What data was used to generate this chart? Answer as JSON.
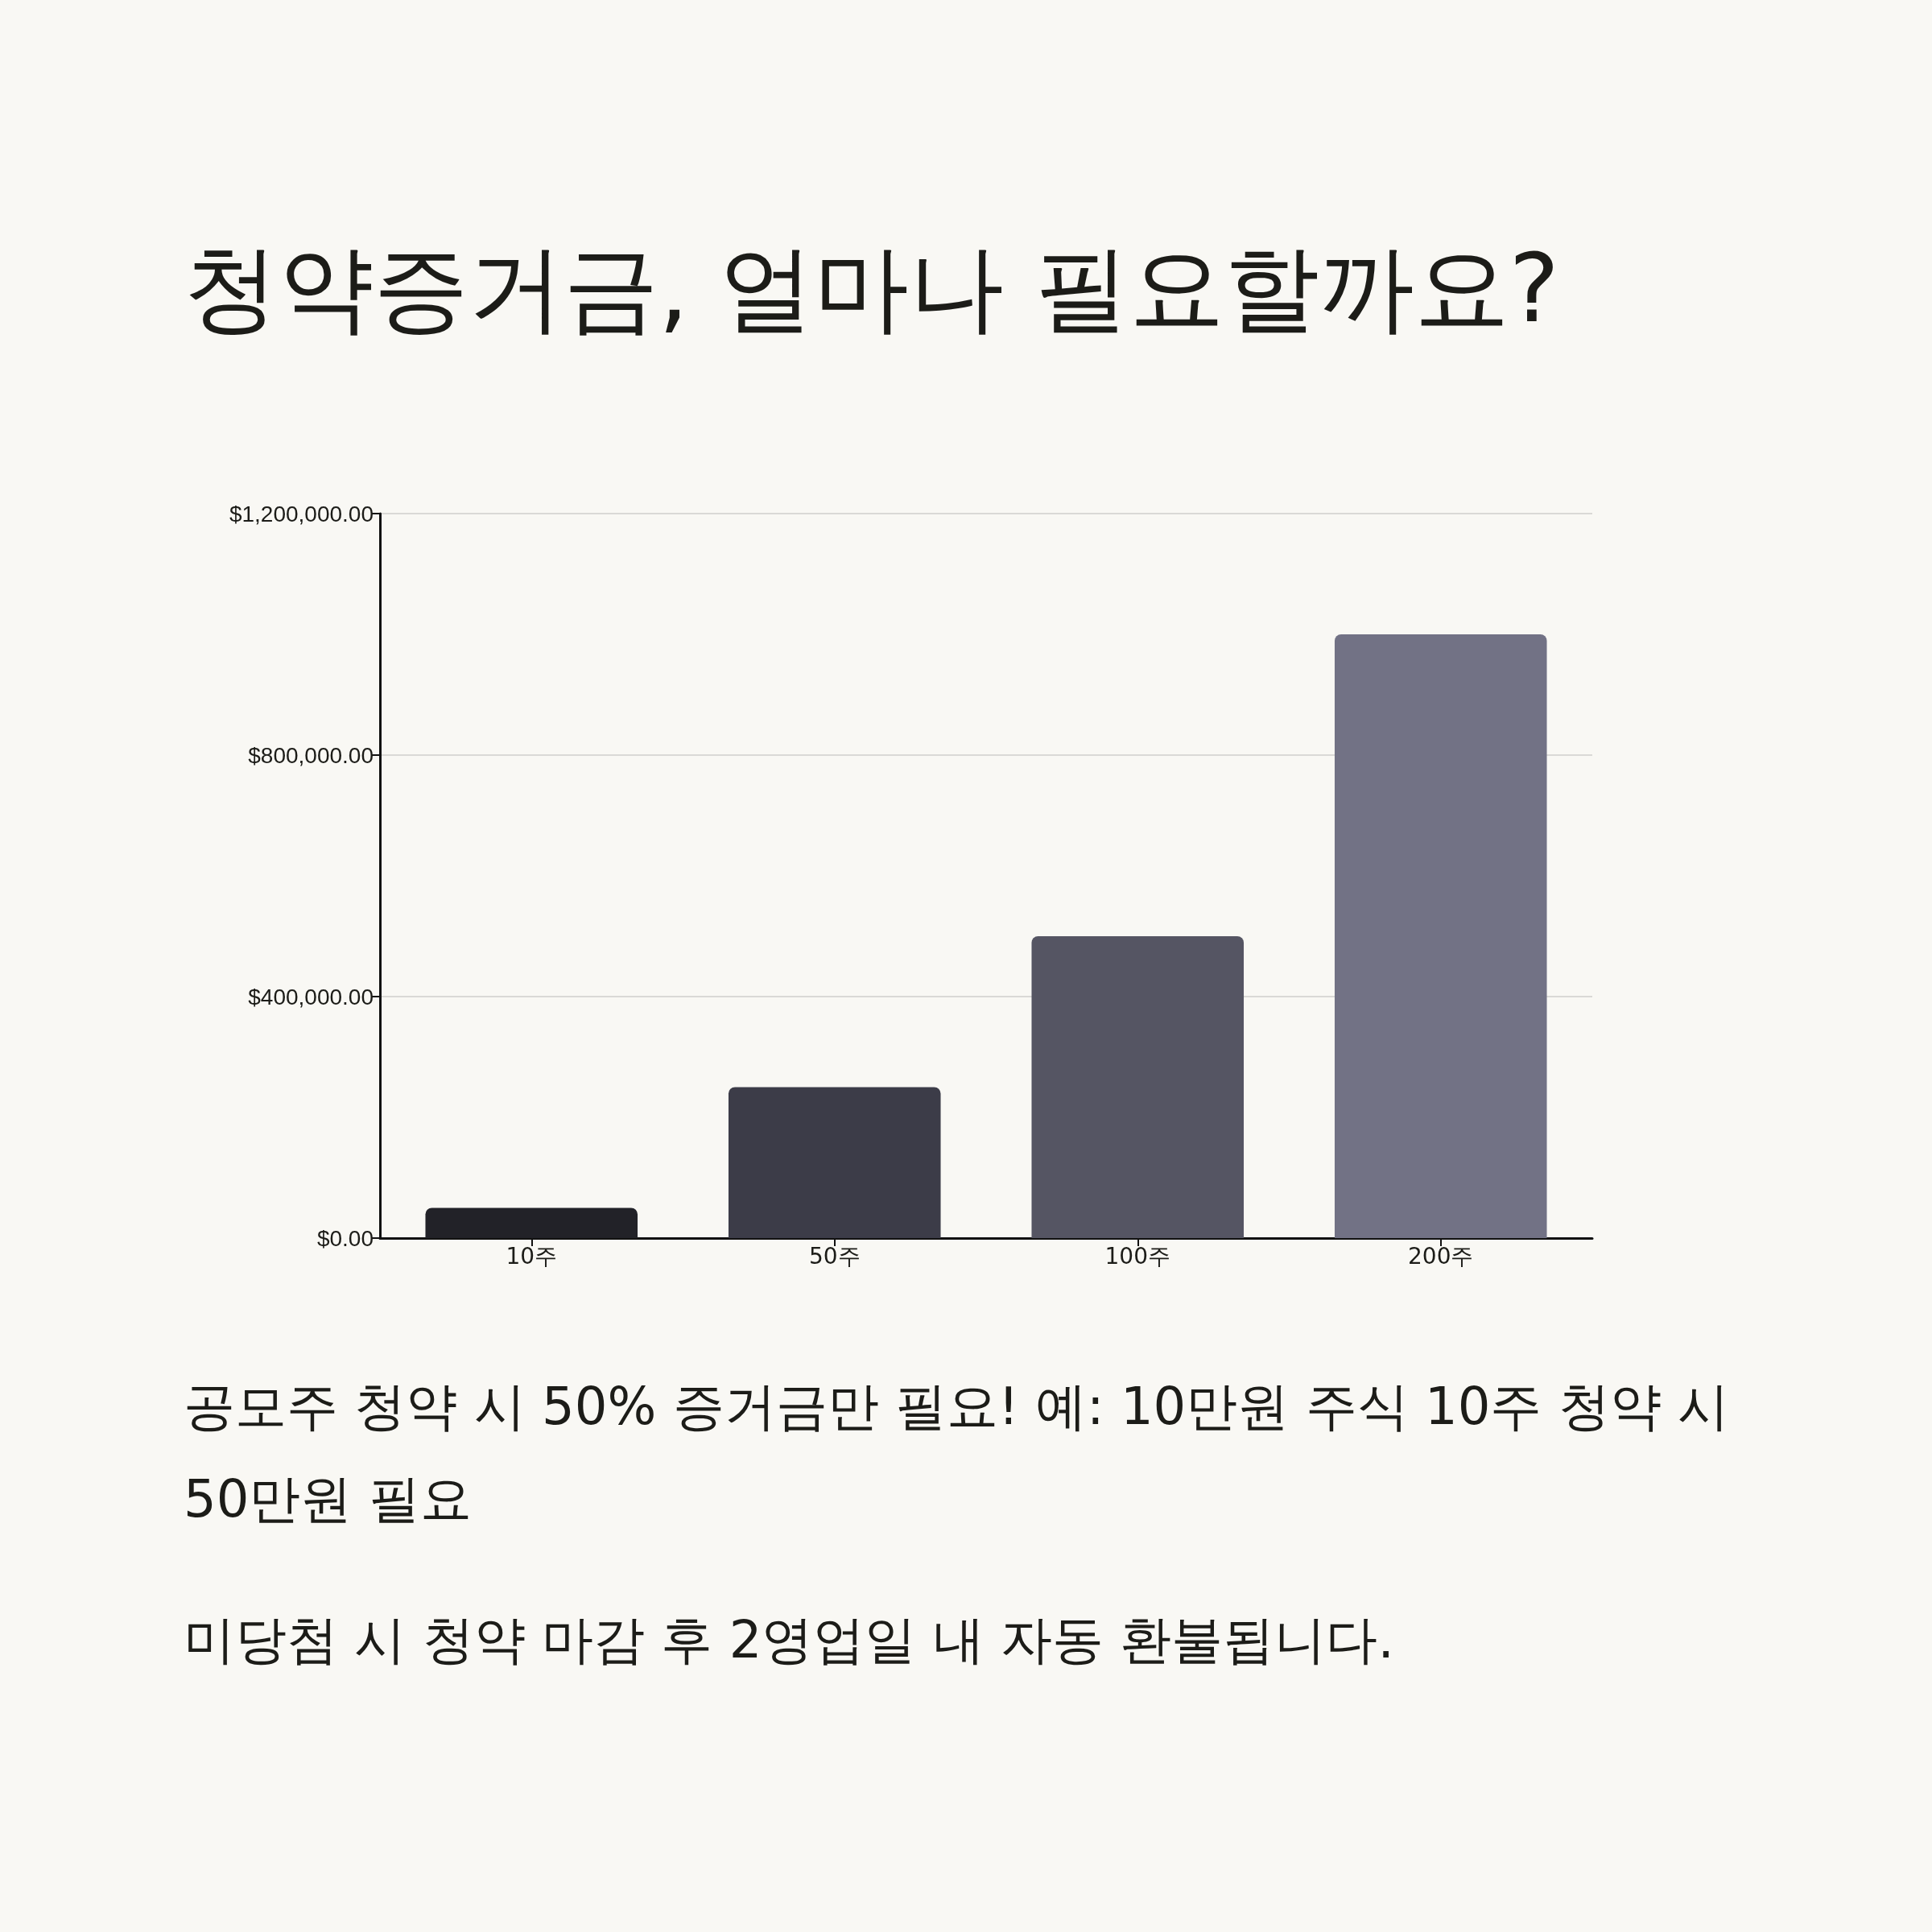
{
  "chart_data": {
    "type": "bar",
    "title": "청약증거금, 얼마나 필요할까요?",
    "categories": [
      "10주",
      "50주",
      "100주",
      "200주"
    ],
    "values": [
      50000,
      250000,
      500000,
      1000000
    ],
    "colors": [
      "#222228",
      "#3c3c48",
      "#555563",
      "#727285"
    ],
    "ylim": [
      0,
      1200000
    ],
    "yticks": [
      {
        "value": 0,
        "label": "$0.00"
      },
      {
        "value": 400000,
        "label": "$400,000.00"
      },
      {
        "value": 800000,
        "label": "$800,000.00"
      },
      {
        "value": 1200000,
        "label": "$1,200,000.00"
      }
    ],
    "grid": "y",
    "annotations": [
      "공모주 청약 시 50% 증거금만 필요! 예: 10만원 주식 10주 청약 시 50만원 필요",
      "미당첨 시 청약 마감 후 2영업일 내 자동 환불됩니다."
    ]
  }
}
